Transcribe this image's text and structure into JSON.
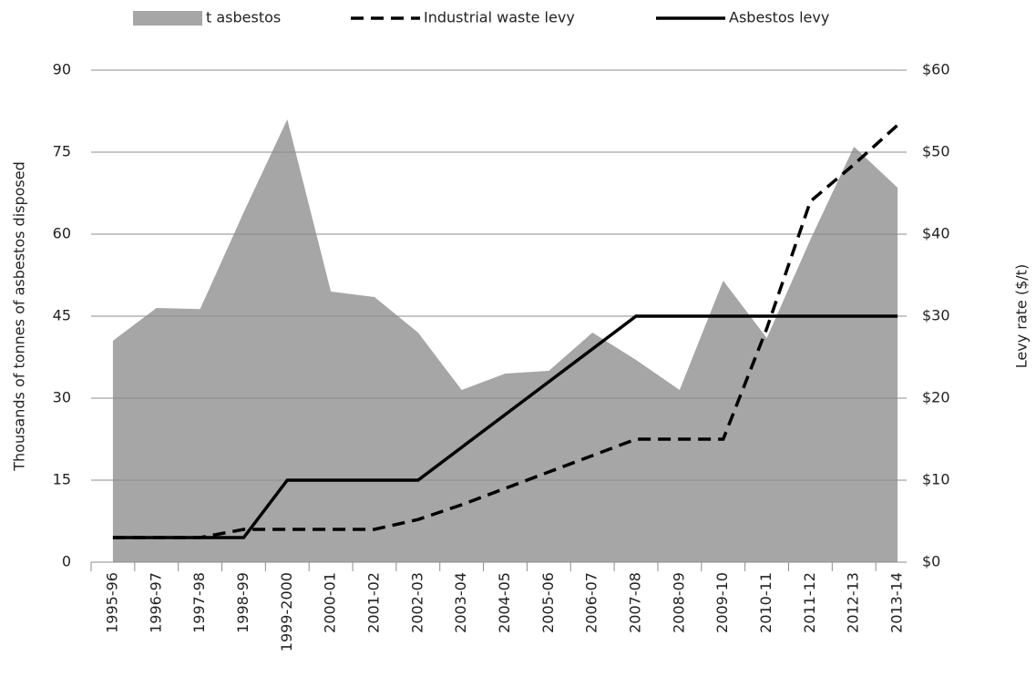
{
  "chart_data": {
    "type": "combo",
    "categories": [
      "1995-96",
      "1996-97",
      "1997-98",
      "1998-99",
      "1999-2000",
      "2000-01",
      "2001-02",
      "2002-03",
      "2003-04",
      "2004-05",
      "2005-06",
      "2006-07",
      "2007-08",
      "2008-09",
      "2009-10",
      "2010-11",
      "2011-12",
      "2012-13",
      "2013-14"
    ],
    "y_label": "Thousands of tonnes of asbestos disposed",
    "y2_label": "Levy rate ($/t)",
    "ylim": [
      0,
      90
    ],
    "yticks": [
      0,
      15,
      30,
      45,
      60,
      75,
      90
    ],
    "y2lim": [
      0,
      60
    ],
    "y2ticks": [
      {
        "value": 0,
        "label": "$0"
      },
      {
        "value": 10,
        "label": "$10"
      },
      {
        "value": 20,
        "label": "$20"
      },
      {
        "value": 30,
        "label": "$30"
      },
      {
        "value": 40,
        "label": "$40"
      },
      {
        "value": 50,
        "label": "$50"
      },
      {
        "value": 60,
        "label": "$60"
      }
    ],
    "grid": true,
    "legend": "top",
    "series": [
      {
        "name": "t asbestos",
        "type": "area",
        "color": "#a6a6a6",
        "values": [
          40.5,
          46.5,
          46.3,
          64,
          81,
          49.5,
          48.5,
          42,
          31.5,
          34.5,
          35,
          42,
          37,
          31.5,
          51.5,
          41,
          59,
          76,
          68.5
        ]
      },
      {
        "name": "Industrial waste levy",
        "type": "line",
        "dash": true,
        "axis": "y2",
        "color": "#000000",
        "values": [
          3,
          3,
          3,
          4,
          4,
          4,
          4,
          5.2,
          7,
          9,
          11,
          13,
          15,
          15,
          15,
          28.5,
          44,
          48.5,
          53.3
        ]
      },
      {
        "name": "Asbestos levy",
        "type": "line",
        "dash": false,
        "axis": "y2",
        "color": "#000000",
        "values": [
          3,
          3,
          3,
          3,
          10,
          10,
          10,
          10,
          14,
          18,
          22,
          26,
          30,
          30,
          30,
          30,
          30,
          30,
          30
        ]
      }
    ]
  }
}
